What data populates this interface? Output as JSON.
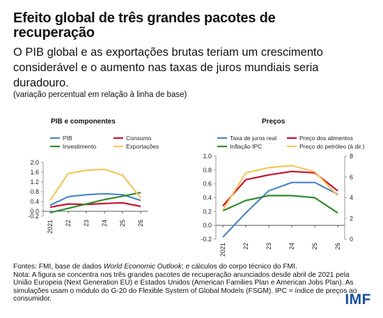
{
  "header": {
    "title": "Efeito global de três grandes pacotes de recuperação",
    "subtitle": "O PIB global e as exportações brutas teriam um crescimento considerável e o aumento nas taxas de juros mundiais seria duradouro.",
    "unit_note": "(variação percentual em relação à linha de base)"
  },
  "chart_data": [
    {
      "type": "line",
      "title": "PIB e componentes",
      "x": [
        "2021",
        "22",
        "23",
        "24",
        "25",
        "26"
      ],
      "ylim": [
        -0.2,
        2.0
      ],
      "yticks": [
        "2.0",
        "1.6",
        "1.2",
        "0.8",
        "0.4",
        "0.0",
        "-0.2"
      ],
      "legend_placement": "top",
      "grid": false,
      "series": [
        {
          "name": "PIB",
          "color": "#4a86c8",
          "values": [
            0.25,
            0.6,
            0.68,
            0.72,
            0.68,
            0.45
          ]
        },
        {
          "name": "Consumo",
          "color": "#c8102e",
          "values": [
            0.17,
            0.3,
            0.28,
            0.32,
            0.35,
            0.2
          ]
        },
        {
          "name": "Investimento",
          "color": "#2e8b2e",
          "values": [
            -0.05,
            0.12,
            0.3,
            0.48,
            0.62,
            0.77
          ]
        },
        {
          "name": "Exportações",
          "color": "#f9c35a",
          "values": [
            0.45,
            1.55,
            1.68,
            1.72,
            1.48,
            0.55
          ]
        }
      ]
    },
    {
      "type": "line",
      "title": "Preços",
      "x": [
        "2021",
        "22",
        "23",
        "24",
        "25",
        "26"
      ],
      "ylim": [
        -0.2,
        1.0
      ],
      "yticks": [
        "1.0",
        "0.8",
        "0.6",
        "0.4",
        "0.2",
        "0.0",
        "-0.2"
      ],
      "y2lim": [
        0,
        8
      ],
      "y2ticks": [
        "8",
        "6",
        "4",
        "2",
        "0"
      ],
      "legend_placement": "top",
      "grid": false,
      "series": [
        {
          "name": "Taxa de juros real",
          "color": "#4a86c8",
          "axis": "left",
          "values": [
            -0.17,
            0.18,
            0.5,
            0.62,
            0.62,
            0.45
          ]
        },
        {
          "name": "Preço dos alimentos",
          "color": "#c8102e",
          "axis": "left",
          "values": [
            0.28,
            0.66,
            0.73,
            0.78,
            0.76,
            0.5
          ]
        },
        {
          "name": "Inflação IPC",
          "color": "#2e8b2e",
          "axis": "left",
          "values": [
            0.21,
            0.36,
            0.43,
            0.43,
            0.4,
            0.18
          ]
        },
        {
          "name": "Preço do petróleo (à dir.)",
          "color": "#f9c35a",
          "axis": "right",
          "values": [
            2.8,
            6.4,
            6.9,
            7.1,
            6.5,
            4.2
          ]
        }
      ]
    }
  ],
  "footer": {
    "sources_prefix": "Fontes: FMI, base de dados ",
    "sources_italic": "World Economic Outlook",
    "sources_suffix": "; e cálculos do corpo técnico do FMI.",
    "note": "Nota: A figura se concentra nos três grandes pacotes de recuperação anunciados desde abril de 2021 pela União Europeia (Next Generation EU) e Estados Unidos (American Families Plan e American Jobs Plan). As simulações usam o módulo do G-20 do Flexible System of Global Models (FSGM). IPC = índice de preços ao consumidor."
  },
  "brand": {
    "logo_text": "IMF",
    "logo_color": "#1b4f9c"
  }
}
